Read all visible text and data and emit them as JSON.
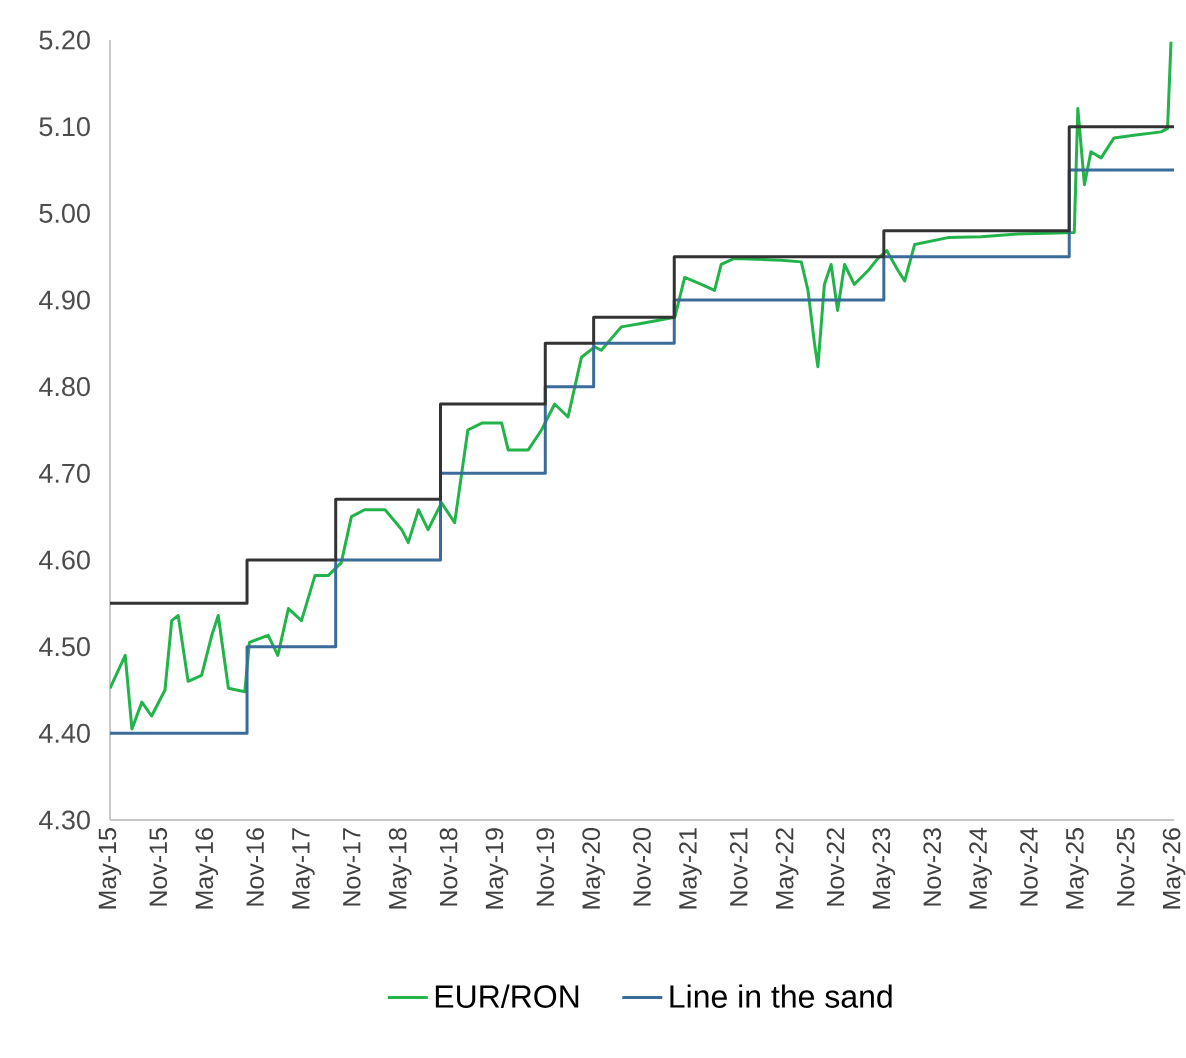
{
  "chart_data": {
    "type": "line",
    "legend": "bottom",
    "line_style": "solid",
    "marker": "none",
    "xlim": [
      "2015-05",
      "2026-05"
    ],
    "ylim": [
      4.3,
      5.2
    ],
    "xticks": [
      {
        "value": "2015-05",
        "label": "May-15"
      },
      {
        "value": "2015-11",
        "label": "Nov-15"
      },
      {
        "value": "2016-05",
        "label": "May-16"
      },
      {
        "value": "2016-11",
        "label": "Nov-16"
      },
      {
        "value": "2017-05",
        "label": "May-17"
      },
      {
        "value": "2017-11",
        "label": "Nov-17"
      },
      {
        "value": "2018-05",
        "label": "May-18"
      },
      {
        "value": "2018-11",
        "label": "Nov-18"
      },
      {
        "value": "2019-05",
        "label": "May-19"
      },
      {
        "value": "2019-11",
        "label": "Nov-19"
      },
      {
        "value": "2020-05",
        "label": "May-20"
      },
      {
        "value": "2020-11",
        "label": "Nov-20"
      },
      {
        "value": "2021-05",
        "label": "May-21"
      },
      {
        "value": "2021-11",
        "label": "Nov-21"
      },
      {
        "value": "2022-05",
        "label": "May-22"
      },
      {
        "value": "2022-11",
        "label": "Nov-22"
      },
      {
        "value": "2023-05",
        "label": "May-23"
      },
      {
        "value": "2023-11",
        "label": "Nov-23"
      },
      {
        "value": "2024-05",
        "label": "May-24"
      },
      {
        "value": "2024-11",
        "label": "Nov-24"
      },
      {
        "value": "2025-05",
        "label": "May-25"
      },
      {
        "value": "2025-11",
        "label": "Nov-25"
      },
      {
        "value": "2026-05",
        "label": "May-26"
      }
    ],
    "yticks": [
      {
        "value": 4.3,
        "label": "4.30"
      },
      {
        "value": 4.4,
        "label": "4.40"
      },
      {
        "value": 4.5,
        "label": "4.50"
      },
      {
        "value": 4.6,
        "label": "4.60"
      },
      {
        "value": 4.7,
        "label": "4.70"
      },
      {
        "value": 4.8,
        "label": "4.80"
      },
      {
        "value": 4.9,
        "label": "4.90"
      },
      {
        "value": 5.0,
        "label": "5.00"
      },
      {
        "value": 5.1,
        "label": "5.10"
      },
      {
        "value": 5.2,
        "label": "5.20"
      }
    ],
    "series": [
      {
        "name": "EUR/RON",
        "color": "#22b44a",
        "x": [
          "2015-05-01",
          "2015-06-28",
          "2015-07-23",
          "2015-08-30",
          "2015-10-06",
          "2015-11-26",
          "2015-12-21",
          "2016-01-15",
          "2016-02-22",
          "2016-04-12",
          "2016-05-20",
          "2016-06-14",
          "2016-07-22",
          "2016-09-23",
          "2016-10-10",
          "2016-12-20",
          "2017-01-26",
          "2017-03-05",
          "2017-04-24",
          "2017-06-14",
          "2017-08-03",
          "2017-09-22",
          "2017-10-30",
          "2017-12-19",
          "2018-03-05",
          "2018-05-07",
          "2018-06-01",
          "2018-07-09",
          "2018-08-15",
          "2018-10-05",
          "2018-11-24",
          "2019-01-13",
          "2019-03-05",
          "2019-05-19",
          "2019-06-13",
          "2019-08-28",
          "2019-10-17",
          "2019-12-06",
          "2020-01-26",
          "2020-03-16",
          "2020-05-05",
          "2020-05-30",
          "2020-08-14",
          "2020-10-28",
          "2021-03-03",
          "2021-04-10",
          "2021-06-12",
          "2021-08-01",
          "2021-08-26",
          "2021-10-15",
          "2022-04-09",
          "2022-06-24",
          "2022-07-19",
          "2022-08-13",
          "2022-08-26",
          "2022-09-20",
          "2022-10-15",
          "2022-11-09",
          "2022-12-05",
          "2023-01-11",
          "2023-03-03",
          "2023-04-09",
          "2023-05-12",
          "2023-06-24",
          "2023-07-19",
          "2023-08-26",
          "2023-12-30",
          "2024-05-03",
          "2024-09-06",
          "2025-01-10",
          "2025-04-20",
          "2025-05-03",
          "2025-05-28",
          "2025-06-22",
          "2025-07-30",
          "2025-09-18",
          "2025-12-02",
          "2026-03-13",
          "2026-04-07",
          "2026-04-20"
        ],
        "values": [
          4.452,
          4.49,
          4.405,
          4.436,
          4.42,
          4.45,
          4.53,
          4.536,
          4.46,
          4.467,
          4.513,
          4.536,
          4.452,
          4.448,
          4.505,
          4.513,
          4.49,
          4.544,
          4.53,
          4.582,
          4.582,
          4.597,
          4.65,
          4.658,
          4.658,
          4.635,
          4.62,
          4.658,
          4.635,
          4.666,
          4.643,
          4.75,
          4.758,
          4.758,
          4.727,
          4.727,
          4.75,
          4.78,
          4.765,
          4.834,
          4.846,
          4.842,
          4.869,
          4.873,
          4.88,
          4.926,
          4.918,
          4.911,
          4.941,
          4.948,
          4.946,
          4.944,
          4.911,
          4.85,
          4.823,
          4.918,
          4.941,
          4.888,
          4.941,
          4.918,
          4.934,
          4.948,
          4.957,
          4.934,
          4.922,
          4.964,
          4.972,
          4.973,
          4.976,
          4.977,
          4.978,
          5.121,
          5.033,
          5.071,
          5.064,
          5.087,
          5.09,
          5.094,
          5.098,
          5.198
        ]
      },
      {
        "name": "Line in the sand",
        "type": "step",
        "color": "#3a6c9a",
        "x": [
          "2015-05",
          "2016-10",
          "2017-09",
          "2018-10",
          "2019-11",
          "2020-05",
          "2021-03",
          "2023-05",
          "2025-04",
          "2026-05"
        ],
        "values": [
          4.4,
          4.5,
          4.6,
          4.7,
          4.8,
          4.85,
          4.9,
          4.95,
          5.05,
          5.05
        ]
      },
      {
        "type": "step",
        "color": "#333333",
        "x": [
          "2015-05",
          "2016-10",
          "2017-09",
          "2018-10",
          "2019-11",
          "2020-05",
          "2021-03",
          "2023-05",
          "2025-04",
          "2026-05"
        ],
        "values": [
          4.55,
          4.6,
          4.67,
          4.78,
          4.85,
          4.88,
          4.95,
          4.98,
          5.1,
          5.1
        ]
      }
    ]
  }
}
